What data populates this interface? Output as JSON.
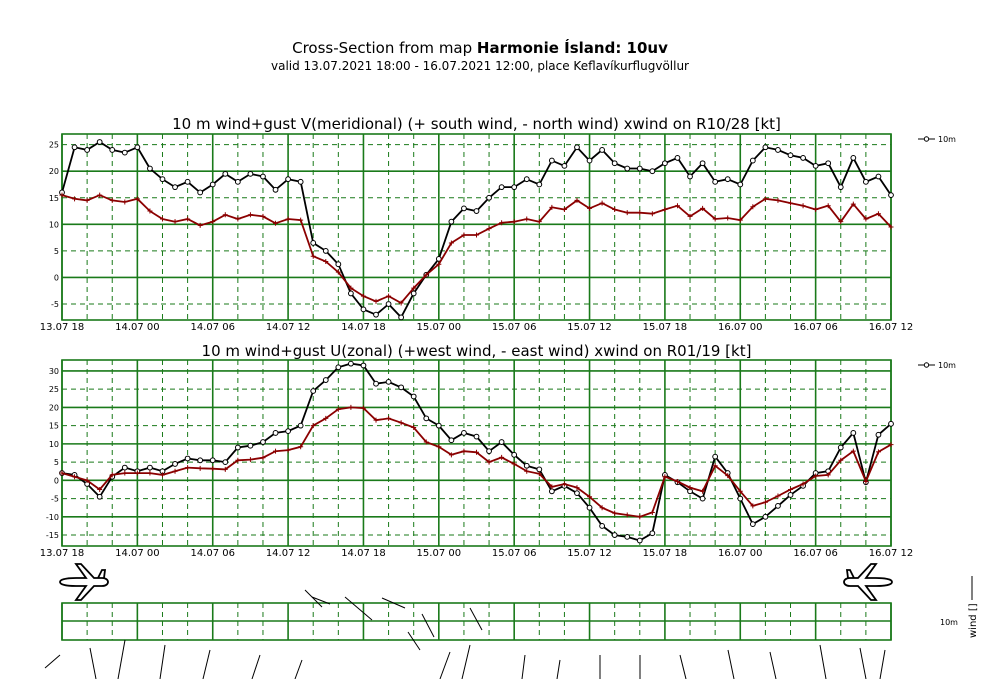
{
  "header": {
    "title_prefix": "Cross-Section from map",
    "title_bold": "Harmonie Ísland: 10uv",
    "subtitle": "valid 13.07.2021 18:00 - 16.07.2021 12:00, place Keflavíkurflugvöllur"
  },
  "colors": {
    "grid": "#1a7a1a",
    "wind": "#000000",
    "gust": "#8b0000"
  },
  "x_tick_labels": [
    "13.07 18",
    "14.07 00",
    "14.07 06",
    "14.07 12",
    "14.07 18",
    "15.07 00",
    "15.07 06",
    "15.07 12",
    "15.07 18",
    "16.07 00",
    "16.07 06",
    "16.07 12"
  ],
  "chart_data": [
    {
      "type": "line",
      "title": "10 m wind+gust V(meridional) (+ south wind, - north wind) xwind on R10/28 [kt]",
      "legend": "10m",
      "legend_position": "top-right",
      "x_range_hours": [
        0,
        66
      ],
      "ylim": [
        -8,
        27
      ],
      "yticks": [
        -5,
        0,
        5,
        10,
        15,
        20,
        25
      ],
      "series": [
        {
          "name": "10m",
          "kind": "wind",
          "values": [
            16,
            24.5,
            24,
            25.5,
            24,
            23.5,
            24.5,
            20.5,
            18.5,
            17,
            18,
            16,
            17.5,
            19.5,
            18,
            19.5,
            19,
            16.5,
            18.5,
            18,
            6.5,
            5,
            2.5,
            -3,
            -6,
            -7,
            -5,
            -7.5,
            -3,
            0.5,
            3.5,
            10.5,
            13,
            12.5,
            15,
            17,
            17,
            18.5,
            17.5,
            22,
            21,
            24.5,
            22,
            24,
            21.5,
            20.5,
            20.5,
            20,
            21.5,
            22.5,
            19,
            21.5,
            18,
            18.5,
            17.5,
            22,
            24.5,
            24,
            23,
            22.5,
            21,
            21.5,
            17,
            22.5,
            18,
            19,
            15.5
          ]
        },
        {
          "kind": "gust",
          "values": [
            15.5,
            14.8,
            14.5,
            15.5,
            14.5,
            14.2,
            14.8,
            12.5,
            11,
            10.5,
            11,
            9.8,
            10.5,
            11.8,
            11,
            11.8,
            11.5,
            10.2,
            11,
            10.8,
            4,
            3,
            1,
            -2,
            -3.5,
            -4.5,
            -3.5,
            -4.8,
            -2,
            0.5,
            2.5,
            6.5,
            8,
            8,
            9.2,
            10.3,
            10.5,
            11,
            10.5,
            13.2,
            12.8,
            14.5,
            13,
            14,
            12.8,
            12.2,
            12.2,
            12,
            12.8,
            13.5,
            11.5,
            13,
            11,
            11.2,
            10.8,
            13.3,
            14.8,
            14.5,
            14,
            13.5,
            12.8,
            13.5,
            10.5,
            13.8,
            11,
            12,
            9.5
          ]
        }
      ]
    },
    {
      "type": "line",
      "title": "10 m wind+gust U(zonal) (+west wind, - east wind) xwind on R01/19 [kt]",
      "legend": "10m",
      "legend_position": "top-right",
      "x_range_hours": [
        0,
        66
      ],
      "ylim": [
        -18,
        33
      ],
      "yticks": [
        -15,
        -10,
        -5,
        0,
        5,
        10,
        15,
        20,
        25,
        30
      ],
      "series": [
        {
          "name": "10m",
          "kind": "wind",
          "values": [
            2,
            1.5,
            -1,
            -4.5,
            1,
            3.5,
            2.5,
            3.5,
            2.5,
            4.5,
            6,
            5.5,
            5.5,
            5,
            9,
            9.5,
            10.5,
            13,
            13.5,
            15,
            24.5,
            27.5,
            31,
            32,
            31.5,
            26.5,
            27,
            25.5,
            23,
            17,
            15,
            11,
            13,
            12,
            8,
            10.5,
            7,
            4,
            3,
            -3,
            -1.5,
            -3.5,
            -7.5,
            -12.5,
            -15,
            -15.5,
            -16.5,
            -14.5,
            1.5,
            -0.5,
            -3,
            -5,
            6.5,
            2,
            -5,
            -12,
            -10,
            -7,
            -4,
            -1.5,
            2,
            2.5,
            9,
            13,
            -0.5,
            12.5,
            15.5
          ]
        },
        {
          "kind": "gust",
          "values": [
            2,
            1,
            0,
            -2.5,
            1.5,
            2,
            2,
            2,
            1.5,
            2.5,
            3.5,
            3.3,
            3.2,
            3,
            5.5,
            5.7,
            6.2,
            8,
            8.3,
            9.2,
            15,
            17,
            19.5,
            20,
            19.8,
            16.5,
            17,
            15.8,
            14.5,
            10.5,
            9.2,
            7,
            8,
            7.7,
            5,
            6.3,
            4.5,
            2.5,
            1.8,
            -1.8,
            -1,
            -2,
            -4.5,
            -7.5,
            -9,
            -9.5,
            -10,
            -8.8,
            1,
            -0.3,
            -2,
            -3,
            4,
            1.3,
            -3,
            -7,
            -6,
            -4.3,
            -2.5,
            -1,
            1.2,
            1.5,
            5.5,
            8,
            -0.3,
            7.8,
            9.8
          ]
        }
      ]
    }
  ],
  "third_panel": {
    "label_top": "10m",
    "label_side": "wind []"
  }
}
